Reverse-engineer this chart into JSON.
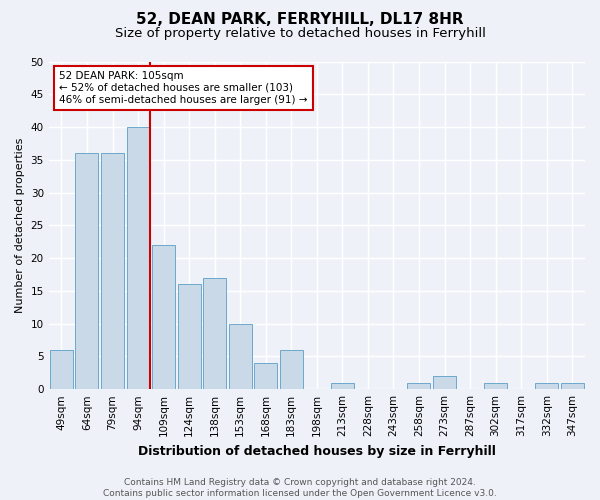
{
  "title1": "52, DEAN PARK, FERRYHILL, DL17 8HR",
  "title2": "Size of property relative to detached houses in Ferryhill",
  "xlabel": "Distribution of detached houses by size in Ferryhill",
  "ylabel": "Number of detached properties",
  "categories": [
    "49sqm",
    "64sqm",
    "79sqm",
    "94sqm",
    "109sqm",
    "124sqm",
    "138sqm",
    "153sqm",
    "168sqm",
    "183sqm",
    "198sqm",
    "213sqm",
    "228sqm",
    "243sqm",
    "258sqm",
    "273sqm",
    "287sqm",
    "302sqm",
    "317sqm",
    "332sqm",
    "347sqm"
  ],
  "values": [
    6,
    36,
    36,
    40,
    22,
    16,
    17,
    10,
    4,
    6,
    0,
    1,
    0,
    0,
    1,
    2,
    0,
    1,
    0,
    1,
    1
  ],
  "bar_color": "#c9d9e8",
  "bar_edge_color": "#5a9ec8",
  "annotation_text": "52 DEAN PARK: 105sqm\n← 52% of detached houses are smaller (103)\n46% of semi-detached houses are larger (91) →",
  "annotation_box_color": "#ffffff",
  "annotation_box_edge": "#cc0000",
  "vline_color": "#cc0000",
  "ylim": [
    0,
    50
  ],
  "yticks": [
    0,
    5,
    10,
    15,
    20,
    25,
    30,
    35,
    40,
    45,
    50
  ],
  "footer1": "Contains HM Land Registry data © Crown copyright and database right 2024.",
  "footer2": "Contains public sector information licensed under the Open Government Licence v3.0.",
  "background_color": "#eef2f8",
  "grid_color": "#ffffff",
  "title1_fontsize": 11,
  "title2_fontsize": 9.5,
  "xlabel_fontsize": 9,
  "ylabel_fontsize": 8,
  "tick_fontsize": 7.5,
  "footer_fontsize": 6.5,
  "vline_xindex": 3
}
